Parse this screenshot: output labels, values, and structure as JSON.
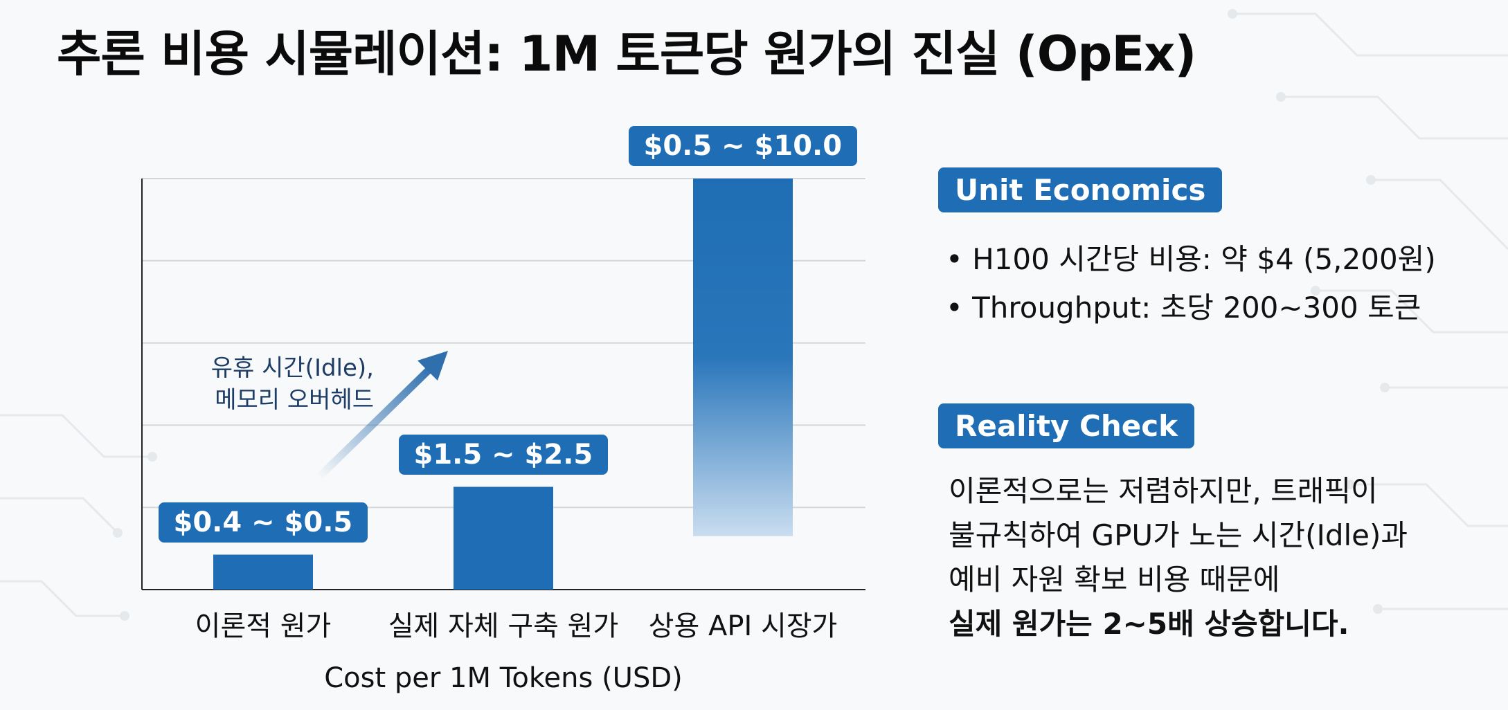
{
  "title": "추론 비용 시뮬레이션: 1M 토큰당 원가의 진실 (OpEx)",
  "chart_data": {
    "type": "bar",
    "categories": [
      "이론적 원가",
      "실제 자체 구축 원가",
      "상용 API 시장가"
    ],
    "values": [
      [
        0.4,
        0.5
      ],
      [
        1.5,
        2.5
      ],
      [
        0.5,
        10.0
      ]
    ],
    "data_labels": [
      "$0.4 ~ $0.5",
      "$1.5 ~ $2.5",
      "$0.5 ~ $10.0"
    ],
    "xlabel": "Cost per 1M Tokens (USD)",
    "ylabel": "",
    "grid": true,
    "annotation": {
      "lines": [
        "유휴 시간(Idle),",
        "메모리 오버헤드"
      ],
      "from": "이론적 원가",
      "to": "실제 자체 구축 원가"
    },
    "colors": {
      "bar": "#1f6db4",
      "bar_fade": "#c9ddf0",
      "label_bg": "#1f6db4",
      "arrow": "#2f6fae",
      "grid": "#d3d7dc"
    }
  },
  "side_panel": {
    "unit_economics": {
      "heading": "Unit Economics",
      "bullets": [
        "H100 시간당 비용: 약 $4 (5,200원)",
        "Throughput: 초당 200~300 토큰"
      ]
    },
    "reality_check": {
      "heading": "Reality Check",
      "lines": [
        "이론적으로는 저렴하지만, 트래픽이",
        "불규칙하여 GPU가 노는 시간(Idle)과",
        "예비 자원 확보 비용 때문에"
      ],
      "conclusion": "실제 원가는 2~5배 상승합니다."
    }
  }
}
